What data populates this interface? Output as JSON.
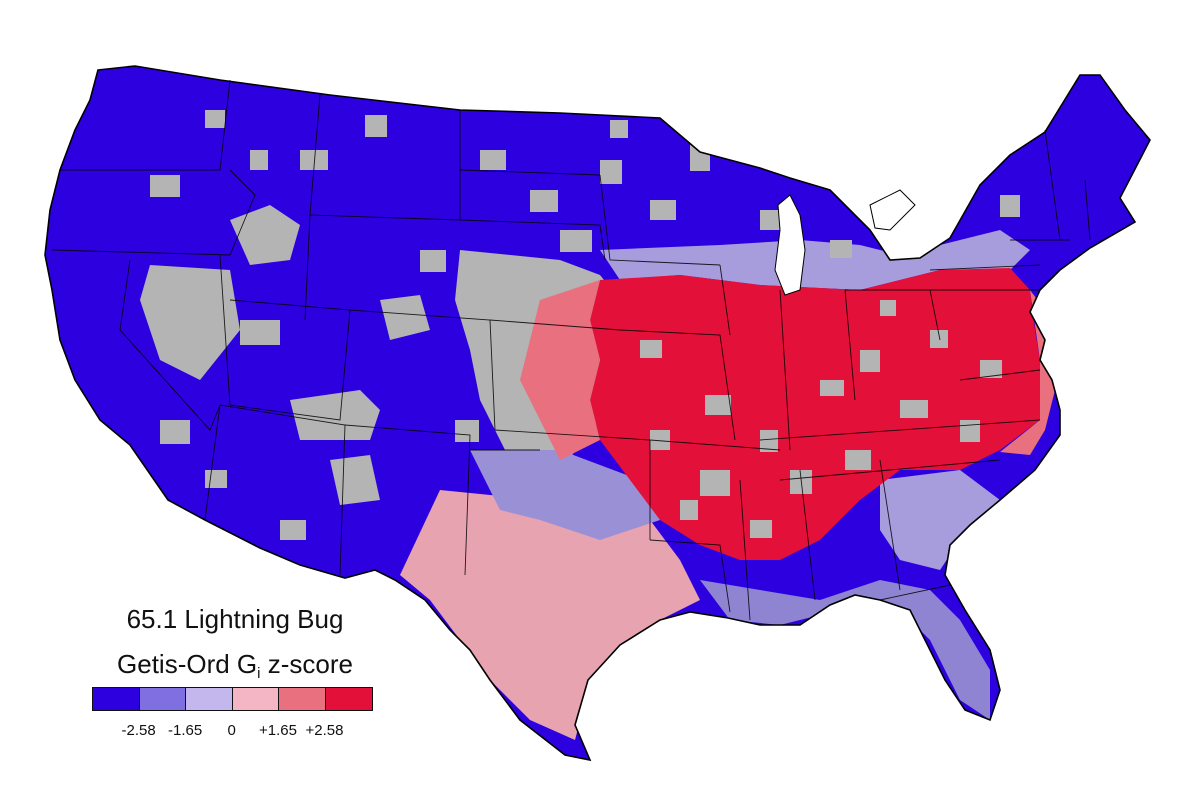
{
  "map": {
    "title": "65.1 Lightning Bug",
    "legend_label_prefix": "Getis-Ord G",
    "legend_label_subscript": "i",
    "legend_label_suffix": " z-score",
    "legend": {
      "classes": [
        {
          "range": "z < -2.58",
          "color": "#2d00e0"
        },
        {
          "range": "-2.58 to -1.65",
          "color": "#7f6fe0"
        },
        {
          "range": "-1.65 to 0",
          "color": "#c3b7ee"
        },
        {
          "range": "0 to +1.65",
          "color": "#f4b6c4"
        },
        {
          "range": "+1.65 to +2.58",
          "color": "#e8707f"
        },
        {
          "range": "z > +2.58",
          "color": "#e3103a"
        }
      ],
      "ticks": [
        "-2.58",
        "-1.65",
        "0",
        "+1.65",
        "+2.58"
      ]
    },
    "colors": {
      "no_data_gray": "#b4b4b4",
      "outline": "#000000"
    },
    "regions": [
      {
        "area": "West (Pacific coast, Great Basin, Rockies, Southwest)",
        "class": "z < -2.58"
      },
      {
        "area": "Northern Plains and Upper Midwest",
        "class": "z < -2.58"
      },
      {
        "area": "New England",
        "class": "z < -2.58"
      },
      {
        "area": "Midwest core (Iowa, Missouri, Illinois, Indiana, Ohio)",
        "class": "z > +2.58"
      },
      {
        "area": "Tennessee, Kentucky, Carolinas, Virginia",
        "class": "z > +2.58"
      },
      {
        "area": "Arkansas, Mississippi, Alabama",
        "class": "z > +2.58"
      },
      {
        "area": "Texas interior and Gulf coast",
        "class": "0 to +1.65"
      },
      {
        "area": "Florida and Louisiana",
        "class": "-2.58 to -1.65"
      }
    ]
  }
}
